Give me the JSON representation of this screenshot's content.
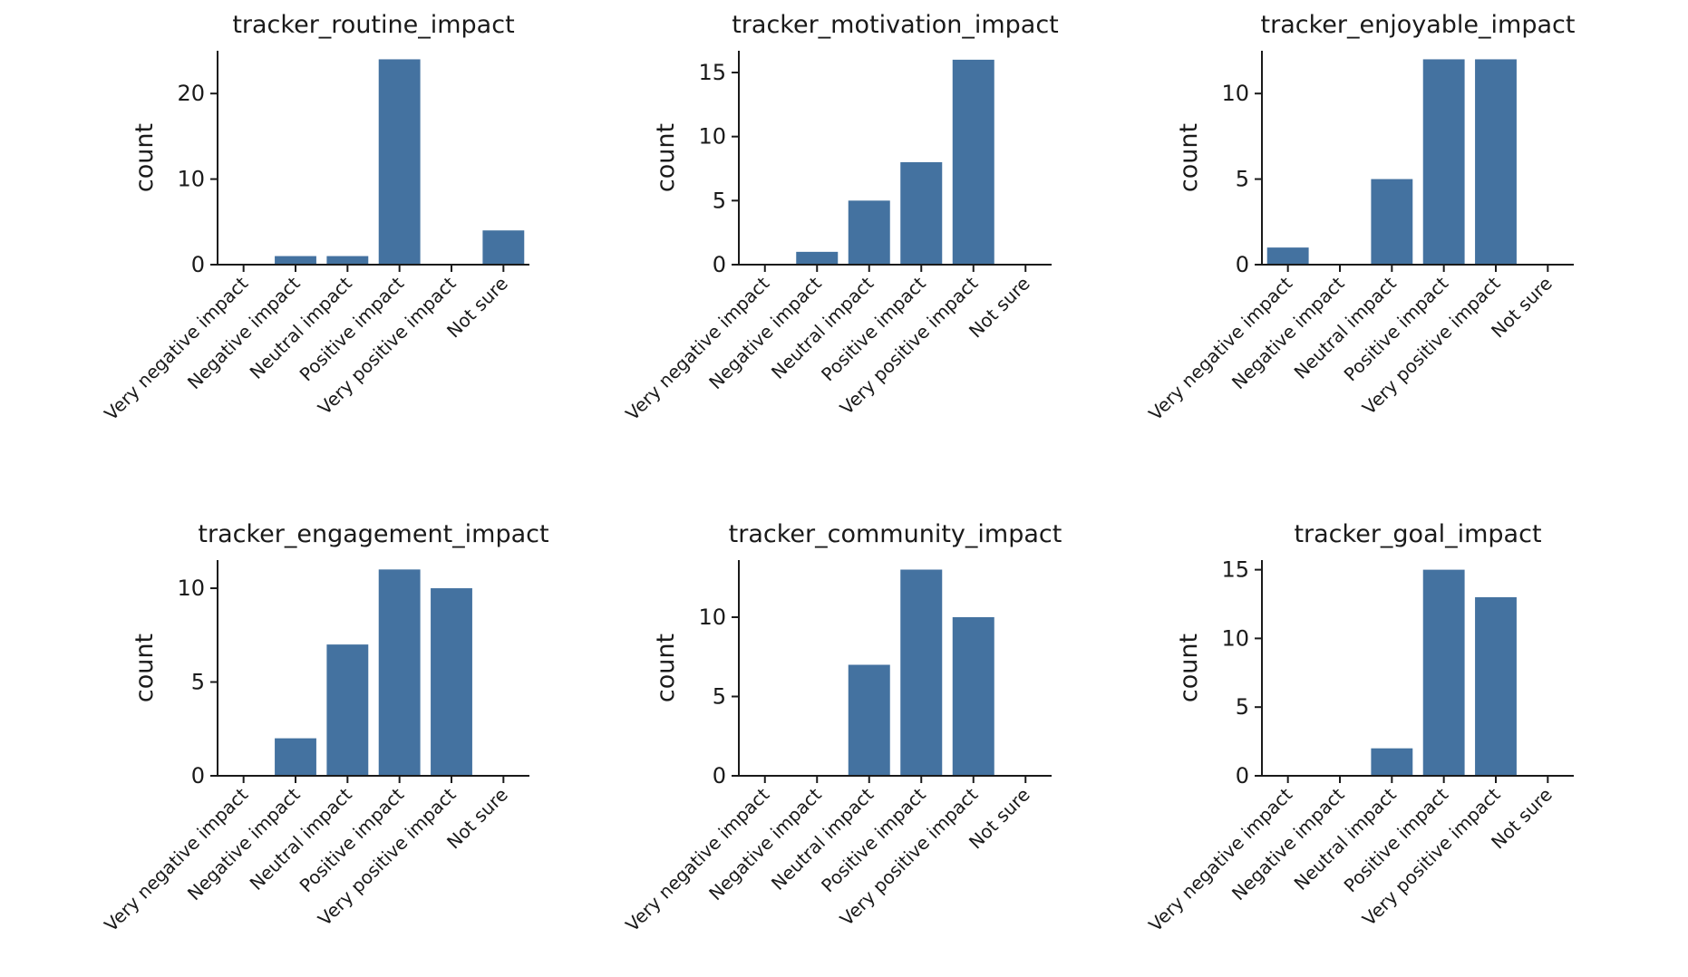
{
  "chart_data": [
    {
      "type": "bar",
      "title": "tracker_routine_impact",
      "ylabel": "count",
      "categories": [
        "Very negative impact",
        "Negative impact",
        "Neutral impact",
        "Positive impact",
        "Very positive impact",
        "Not sure"
      ],
      "values": [
        0,
        1,
        1,
        24,
        0,
        4
      ],
      "ylim": [
        0,
        25
      ],
      "yticks": [
        0,
        10,
        20
      ],
      "bar_color": "#4472a0"
    },
    {
      "type": "bar",
      "title": "tracker_motivation_impact",
      "ylabel": "count",
      "categories": [
        "Very negative impact",
        "Negative impact",
        "Neutral impact",
        "Positive impact",
        "Very positive impact",
        "Not sure"
      ],
      "values": [
        0,
        1,
        5,
        8,
        16,
        0
      ],
      "ylim": [
        0,
        16.7
      ],
      "yticks": [
        0,
        5,
        10,
        15
      ],
      "bar_color": "#4472a0"
    },
    {
      "type": "bar",
      "title": "tracker_enjoyable_impact",
      "ylabel": "count",
      "categories": [
        "Very negative impact",
        "Negative impact",
        "Neutral impact",
        "Positive impact",
        "Very positive impact",
        "Not sure"
      ],
      "values": [
        1,
        0,
        5,
        12,
        12,
        0
      ],
      "ylim": [
        0,
        12.5
      ],
      "yticks": [
        0,
        5,
        10
      ],
      "bar_color": "#4472a0"
    },
    {
      "type": "bar",
      "title": "tracker_engagement_impact",
      "ylabel": "count",
      "categories": [
        "Very negative impact",
        "Negative impact",
        "Neutral impact",
        "Positive impact",
        "Very positive impact",
        "Not sure"
      ],
      "values": [
        0,
        2,
        7,
        11,
        10,
        0
      ],
      "ylim": [
        0,
        11.5
      ],
      "yticks": [
        0,
        5,
        10
      ],
      "bar_color": "#4472a0"
    },
    {
      "type": "bar",
      "title": "tracker_community_impact",
      "ylabel": "count",
      "categories": [
        "Very negative impact",
        "Negative impact",
        "Neutral impact",
        "Positive impact",
        "Very positive impact",
        "Not sure"
      ],
      "values": [
        0,
        0,
        7,
        13,
        10,
        0
      ],
      "ylim": [
        0,
        13.6
      ],
      "yticks": [
        0,
        5,
        10
      ],
      "bar_color": "#4472a0"
    },
    {
      "type": "bar",
      "title": "tracker_goal_impact",
      "ylabel": "count",
      "categories": [
        "Very negative impact",
        "Negative impact",
        "Neutral impact",
        "Positive impact",
        "Very positive impact",
        "Not sure"
      ],
      "values": [
        0,
        0,
        2,
        15,
        13,
        0
      ],
      "ylim": [
        0,
        15.7
      ],
      "yticks": [
        0,
        5,
        10,
        15
      ],
      "bar_color": "#4472a0"
    }
  ]
}
